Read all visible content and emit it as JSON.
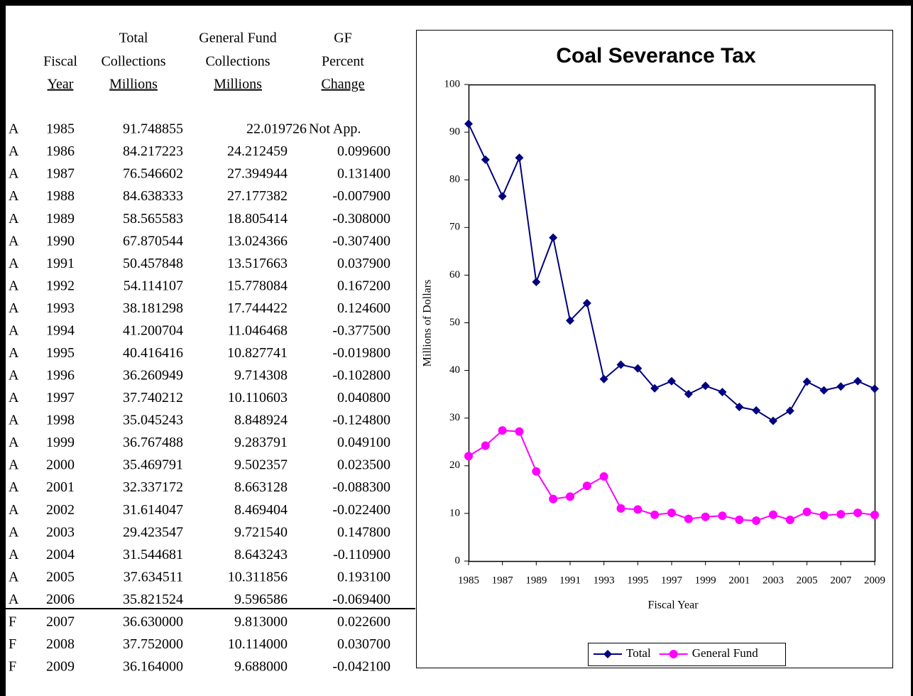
{
  "table": {
    "header": [
      [
        "",
        "Total",
        "General Fund",
        "GF"
      ],
      [
        "Fiscal",
        "Collections",
        "Collections",
        "Percent"
      ],
      [
        "Year",
        "Millions",
        "Millions",
        "Change"
      ]
    ],
    "rows": [
      [
        "A",
        "1985",
        "91.748855",
        "22.019726",
        "Not App."
      ],
      [
        "A",
        "1986",
        "84.217223",
        "24.212459",
        "0.099600"
      ],
      [
        "A",
        "1987",
        "76.546602",
        "27.394944",
        "0.131400"
      ],
      [
        "A",
        "1988",
        "84.638333",
        "27.177382",
        "-0.007900"
      ],
      [
        "A",
        "1989",
        "58.565583",
        "18.805414",
        "-0.308000"
      ],
      [
        "A",
        "1990",
        "67.870544",
        "13.024366",
        "-0.307400"
      ],
      [
        "A",
        "1991",
        "50.457848",
        "13.517663",
        "0.037900"
      ],
      [
        "A",
        "1992",
        "54.114107",
        "15.778084",
        "0.167200"
      ],
      [
        "A",
        "1993",
        "38.181298",
        "17.744422",
        "0.124600"
      ],
      [
        "A",
        "1994",
        "41.200704",
        "11.046468",
        "-0.377500"
      ],
      [
        "A",
        "1995",
        "40.416416",
        "10.827741",
        "-0.019800"
      ],
      [
        "A",
        "1996",
        "36.260949",
        "9.714308",
        "-0.102800"
      ],
      [
        "A",
        "1997",
        "37.740212",
        "10.110603",
        "0.040800"
      ],
      [
        "A",
        "1998",
        "35.045243",
        "8.848924",
        "-0.124800"
      ],
      [
        "A",
        "1999",
        "36.767488",
        "9.283791",
        "0.049100"
      ],
      [
        "A",
        "2000",
        "35.469791",
        "9.502357",
        "0.023500"
      ],
      [
        "A",
        "2001",
        "32.337172",
        "8.663128",
        "-0.088300"
      ],
      [
        "A",
        "2002",
        "31.614047",
        "8.469404",
        "-0.022400"
      ],
      [
        "A",
        "2003",
        "29.423547",
        "9.721540",
        "0.147800"
      ],
      [
        "A",
        "2004",
        "31.544681",
        "8.643243",
        "-0.110900"
      ],
      [
        "A",
        "2005",
        "37.634511",
        "10.311856",
        "0.193100"
      ],
      [
        "A",
        "2006",
        "35.821524",
        "9.596586",
        "-0.069400"
      ],
      [
        "F",
        "2007",
        "36.630000",
        "9.813000",
        "0.022600"
      ],
      [
        "F",
        "2008",
        "37.752000",
        "10.114000",
        "0.030700"
      ],
      [
        "F",
        "2009",
        "36.164000",
        "9.688000",
        "-0.042100"
      ]
    ]
  },
  "chart_data": {
    "type": "line",
    "title": "Coal Severance Tax",
    "x_label": "Fiscal Year",
    "y_label": "Millions of Dollars",
    "x": [
      1985,
      1986,
      1987,
      1988,
      1989,
      1990,
      1991,
      1992,
      1993,
      1994,
      1995,
      1996,
      1997,
      1998,
      1999,
      2000,
      2001,
      2002,
      2003,
      2004,
      2005,
      2006,
      2007,
      2008,
      2009
    ],
    "xlim": [
      1985,
      2009
    ],
    "xticks": [
      1985,
      1987,
      1989,
      1991,
      1993,
      1995,
      1997,
      1999,
      2001,
      2003,
      2005,
      2007,
      2009
    ],
    "ylim": [
      0,
      100
    ],
    "yticks": [
      0,
      10,
      20,
      30,
      40,
      50,
      60,
      70,
      80,
      90,
      100
    ],
    "legend": "bottom",
    "series": [
      {
        "name": "Total",
        "color": "#000080",
        "marker": "diamond",
        "values": [
          91.748855,
          84.217223,
          76.546602,
          84.638333,
          58.565583,
          67.870544,
          50.457848,
          54.114107,
          38.181298,
          41.200704,
          40.416416,
          36.260949,
          37.740212,
          35.045243,
          36.767488,
          35.469791,
          32.337172,
          31.614047,
          29.423547,
          31.544681,
          37.634511,
          35.821524,
          36.63,
          37.752,
          36.164
        ]
      },
      {
        "name": "General Fund",
        "color": "#ff00ff",
        "marker": "circle",
        "values": [
          22.019726,
          24.212459,
          27.394944,
          27.177382,
          18.805414,
          13.024366,
          13.517663,
          15.778084,
          17.744422,
          11.046468,
          10.827741,
          9.714308,
          10.110603,
          8.848924,
          9.283791,
          9.502357,
          8.663128,
          8.469404,
          9.72154,
          8.643243,
          10.311856,
          9.596586,
          9.813,
          10.114,
          9.688
        ]
      }
    ]
  }
}
